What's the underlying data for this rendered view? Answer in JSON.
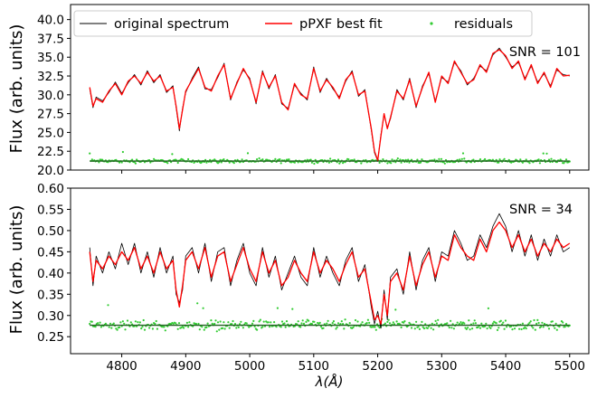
{
  "figure": {
    "xlabel": "λ(Å)",
    "legend": {
      "placement": "top-left",
      "entries": [
        {
          "label": "original spectrum",
          "color": "#000000",
          "kind": "line"
        },
        {
          "label": "pPXF best fit",
          "color": "#ff0000",
          "kind": "line"
        },
        {
          "label": "residuals",
          "color": "#33cc33",
          "kind": "points"
        }
      ]
    }
  },
  "chart_data": [
    {
      "type": "line",
      "title": "",
      "ylabel": "Flux (arb. units)",
      "annotation": "SNR = 101",
      "xlim": [
        4720,
        5530
      ],
      "ylim": [
        20.0,
        42.0
      ],
      "xticks": [
        4800,
        4900,
        5000,
        5100,
        5200,
        5300,
        5400,
        5500
      ],
      "yticks": [
        20.0,
        22.5,
        25.0,
        27.5,
        30.0,
        32.5,
        35.0,
        37.5,
        40.0
      ],
      "ytick_labels": [
        "20.0",
        "22.5",
        "25.0",
        "27.5",
        "30.0",
        "32.5",
        "35.0",
        "37.5",
        "40.0"
      ],
      "baseline": 21.2,
      "residual_spread": 0.45,
      "series": [
        {
          "name": "pPXF best fit",
          "x": [
            4750,
            4755,
            4760,
            4770,
            4780,
            4790,
            4800,
            4810,
            4820,
            4830,
            4840,
            4850,
            4860,
            4870,
            4880,
            4885,
            4890,
            4895,
            4900,
            4910,
            4920,
            4930,
            4940,
            4950,
            4960,
            4970,
            4980,
            4990,
            5000,
            5010,
            5020,
            5030,
            5040,
            5050,
            5060,
            5070,
            5080,
            5090,
            5100,
            5110,
            5120,
            5130,
            5140,
            5150,
            5160,
            5170,
            5180,
            5190,
            5195,
            5200,
            5205,
            5210,
            5215,
            5220,
            5230,
            5240,
            5250,
            5260,
            5270,
            5280,
            5290,
            5300,
            5310,
            5320,
            5330,
            5340,
            5350,
            5360,
            5370,
            5380,
            5390,
            5400,
            5410,
            5420,
            5430,
            5440,
            5450,
            5460,
            5470,
            5480,
            5490,
            5500
          ],
          "y": [
            31.0,
            28.5,
            29.5,
            29.0,
            30.5,
            31.5,
            30.0,
            31.8,
            32.5,
            31.5,
            33.0,
            31.8,
            32.5,
            30.5,
            31.0,
            28.5,
            25.5,
            28.0,
            30.5,
            32.0,
            33.5,
            31.0,
            30.5,
            32.5,
            34.0,
            29.5,
            31.5,
            33.5,
            32.0,
            29.0,
            33.0,
            31.0,
            32.5,
            29.0,
            28.0,
            31.5,
            30.0,
            29.5,
            33.5,
            30.5,
            32.0,
            31.0,
            29.5,
            32.0,
            33.0,
            30.0,
            30.5,
            25.5,
            22.5,
            21.3,
            24.5,
            27.5,
            25.5,
            27.0,
            30.5,
            29.5,
            32.0,
            28.5,
            31.0,
            33.0,
            29.0,
            32.5,
            31.5,
            34.5,
            33.0,
            31.5,
            32.0,
            34.0,
            33.0,
            35.5,
            36.0,
            35.2,
            33.5,
            34.5,
            32.0,
            34.0,
            31.5,
            33.0,
            31.0,
            33.5,
            32.5,
            32.6
          ]
        },
        {
          "name": "original spectrum",
          "x": [
            4750,
            4755,
            4760,
            4770,
            4780,
            4790,
            4800,
            4810,
            4820,
            4830,
            4840,
            4850,
            4860,
            4870,
            4880,
            4885,
            4890,
            4895,
            4900,
            4910,
            4920,
            4930,
            4940,
            4950,
            4960,
            4970,
            4980,
            4990,
            5000,
            5010,
            5020,
            5030,
            5040,
            5050,
            5060,
            5070,
            5080,
            5090,
            5100,
            5110,
            5120,
            5130,
            5140,
            5150,
            5160,
            5170,
            5180,
            5190,
            5195,
            5200,
            5205,
            5210,
            5215,
            5220,
            5230,
            5240,
            5250,
            5260,
            5270,
            5280,
            5290,
            5300,
            5310,
            5320,
            5330,
            5340,
            5350,
            5360,
            5370,
            5380,
            5390,
            5400,
            5410,
            5420,
            5430,
            5440,
            5450,
            5460,
            5470,
            5480,
            5490,
            5500
          ],
          "y": [
            30.8,
            28.3,
            29.7,
            29.2,
            30.3,
            31.7,
            30.2,
            31.6,
            32.7,
            31.3,
            33.2,
            31.6,
            32.7,
            30.3,
            31.2,
            28.3,
            25.2,
            28.2,
            30.3,
            32.2,
            33.7,
            30.8,
            30.7,
            32.3,
            34.2,
            29.3,
            31.7,
            33.3,
            32.2,
            28.8,
            33.2,
            30.8,
            32.7,
            28.8,
            28.2,
            31.3,
            30.2,
            29.3,
            33.7,
            30.3,
            32.2,
            30.8,
            29.7,
            31.8,
            33.2,
            29.8,
            30.7,
            25.3,
            22.3,
            21.2,
            24.7,
            27.3,
            25.7,
            26.8,
            30.7,
            29.3,
            32.2,
            28.3,
            31.2,
            32.8,
            29.2,
            32.3,
            31.7,
            34.3,
            33.2,
            31.3,
            32.2,
            33.8,
            33.2,
            35.3,
            36.2,
            35.0,
            33.7,
            34.3,
            32.2,
            33.8,
            31.7,
            32.8,
            31.2,
            33.3,
            32.7,
            32.5
          ]
        }
      ]
    },
    {
      "type": "line",
      "title": "",
      "ylabel": "Flux (arb. units)",
      "annotation": "SNR = 34",
      "xlim": [
        4720,
        5530
      ],
      "ylim": [
        0.21,
        0.6
      ],
      "xticks": [
        4800,
        4900,
        5000,
        5100,
        5200,
        5300,
        5400,
        5500
      ],
      "xtick_labels": [
        "4800",
        "4900",
        "5000",
        "5100",
        "5200",
        "5300",
        "5400",
        "5500"
      ],
      "yticks": [
        0.25,
        0.3,
        0.35,
        0.4,
        0.45,
        0.5,
        0.55,
        0.6
      ],
      "ytick_labels": [
        "0.25",
        "0.30",
        "0.35",
        "0.40",
        "0.45",
        "0.50",
        "0.55",
        "0.60"
      ],
      "baseline": 0.277,
      "residual_spread": 0.02,
      "series": [
        {
          "name": "pPXF best fit",
          "x": [
            4750,
            4755,
            4760,
            4770,
            4780,
            4790,
            4800,
            4810,
            4820,
            4830,
            4840,
            4850,
            4860,
            4870,
            4880,
            4885,
            4890,
            4895,
            4900,
            4910,
            4920,
            4930,
            4940,
            4950,
            4960,
            4970,
            4980,
            4990,
            5000,
            5010,
            5020,
            5030,
            5040,
            5050,
            5060,
            5070,
            5080,
            5090,
            5100,
            5110,
            5120,
            5130,
            5140,
            5150,
            5160,
            5170,
            5180,
            5190,
            5195,
            5200,
            5205,
            5210,
            5215,
            5220,
            5230,
            5240,
            5250,
            5260,
            5270,
            5280,
            5290,
            5300,
            5310,
            5320,
            5330,
            5340,
            5350,
            5360,
            5370,
            5380,
            5390,
            5400,
            5410,
            5420,
            5430,
            5440,
            5450,
            5460,
            5470,
            5480,
            5490,
            5500
          ],
          "y": [
            0.45,
            0.38,
            0.43,
            0.41,
            0.44,
            0.42,
            0.45,
            0.43,
            0.46,
            0.41,
            0.44,
            0.4,
            0.45,
            0.41,
            0.43,
            0.36,
            0.32,
            0.37,
            0.43,
            0.45,
            0.41,
            0.46,
            0.39,
            0.44,
            0.45,
            0.38,
            0.42,
            0.46,
            0.41,
            0.38,
            0.45,
            0.4,
            0.43,
            0.37,
            0.39,
            0.43,
            0.4,
            0.38,
            0.45,
            0.4,
            0.43,
            0.41,
            0.38,
            0.42,
            0.45,
            0.39,
            0.41,
            0.33,
            0.29,
            0.3,
            0.28,
            0.35,
            0.3,
            0.38,
            0.4,
            0.36,
            0.44,
            0.37,
            0.42,
            0.45,
            0.39,
            0.44,
            0.43,
            0.49,
            0.46,
            0.44,
            0.43,
            0.48,
            0.45,
            0.5,
            0.52,
            0.5,
            0.46,
            0.49,
            0.45,
            0.48,
            0.44,
            0.47,
            0.45,
            0.48,
            0.46,
            0.47
          ]
        },
        {
          "name": "original spectrum",
          "x": [
            4750,
            4755,
            4760,
            4770,
            4780,
            4790,
            4800,
            4810,
            4820,
            4830,
            4840,
            4850,
            4860,
            4870,
            4880,
            4885,
            4890,
            4895,
            4900,
            4910,
            4920,
            4930,
            4940,
            4950,
            4960,
            4970,
            4980,
            4990,
            5000,
            5010,
            5020,
            5030,
            5040,
            5050,
            5060,
            5070,
            5080,
            5090,
            5100,
            5110,
            5120,
            5130,
            5140,
            5150,
            5160,
            5170,
            5180,
            5190,
            5195,
            5200,
            5205,
            5210,
            5215,
            5220,
            5230,
            5240,
            5250,
            5260,
            5270,
            5280,
            5290,
            5300,
            5310,
            5320,
            5330,
            5340,
            5350,
            5360,
            5370,
            5380,
            5390,
            5400,
            5410,
            5420,
            5430,
            5440,
            5450,
            5460,
            5470,
            5480,
            5490,
            5500
          ],
          "y": [
            0.46,
            0.37,
            0.44,
            0.4,
            0.45,
            0.41,
            0.47,
            0.42,
            0.47,
            0.4,
            0.45,
            0.39,
            0.46,
            0.4,
            0.44,
            0.35,
            0.33,
            0.36,
            0.44,
            0.46,
            0.4,
            0.47,
            0.38,
            0.45,
            0.46,
            0.37,
            0.43,
            0.47,
            0.4,
            0.37,
            0.46,
            0.39,
            0.44,
            0.36,
            0.4,
            0.44,
            0.39,
            0.37,
            0.46,
            0.39,
            0.44,
            0.4,
            0.37,
            0.43,
            0.46,
            0.38,
            0.42,
            0.32,
            0.28,
            0.31,
            0.27,
            0.36,
            0.29,
            0.39,
            0.41,
            0.35,
            0.45,
            0.36,
            0.43,
            0.46,
            0.38,
            0.45,
            0.44,
            0.5,
            0.47,
            0.43,
            0.44,
            0.49,
            0.46,
            0.51,
            0.54,
            0.51,
            0.45,
            0.5,
            0.44,
            0.49,
            0.43,
            0.48,
            0.44,
            0.49,
            0.45,
            0.46
          ]
        }
      ]
    }
  ]
}
